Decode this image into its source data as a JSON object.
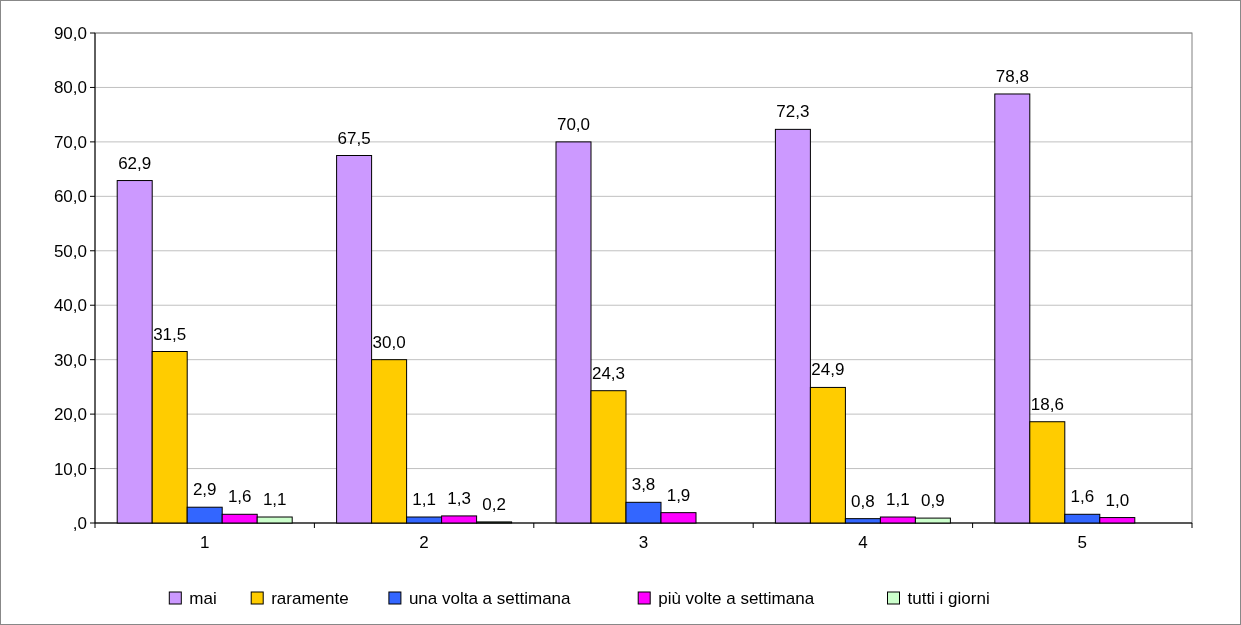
{
  "chart_data": {
    "type": "bar",
    "categories": [
      "1",
      "2",
      "3",
      "4",
      "5"
    ],
    "series": [
      {
        "name": "mai",
        "color": "#cc99ff",
        "values": [
          62.9,
          67.5,
          70.0,
          72.3,
          78.8
        ],
        "value_labels": [
          "62,9",
          "67,5",
          "70,0",
          "72,3",
          "78,8"
        ]
      },
      {
        "name": "raramente",
        "color": "#ffcc00",
        "values": [
          31.5,
          30.0,
          24.3,
          24.9,
          18.6
        ],
        "value_labels": [
          "31,5",
          "30,0",
          "24,3",
          "24,9",
          "18,6"
        ]
      },
      {
        "name": "una volta a settimana",
        "color": "#3366ff",
        "values": [
          2.9,
          1.1,
          3.8,
          0.8,
          1.6
        ],
        "value_labels": [
          "2,9",
          "1,1",
          "3,8",
          "0,8",
          "1,6"
        ]
      },
      {
        "name": "più volte a settimana",
        "color": "#ff00ff",
        "values": [
          1.6,
          1.3,
          1.9,
          1.1,
          1.0
        ],
        "value_labels": [
          "1,6",
          "1,3",
          "1,9",
          "1,1",
          "1,0"
        ]
      },
      {
        "name": "tutti i giorni",
        "color": "#ccffcc",
        "values": [
          1.1,
          0.2,
          null,
          0.9,
          null
        ],
        "value_labels": [
          "1,1",
          "0,2",
          null,
          "0,9",
          null
        ]
      }
    ],
    "ylim": [
      0,
      90
    ],
    "yticks": [
      {
        "value": 0,
        "label": ",0"
      },
      {
        "value": 10,
        "label": "10,0"
      },
      {
        "value": 20,
        "label": "20,0"
      },
      {
        "value": 30,
        "label": "30,0"
      },
      {
        "value": 40,
        "label": "40,0"
      },
      {
        "value": 50,
        "label": "50,0"
      },
      {
        "value": 60,
        "label": "60,0"
      },
      {
        "value": 70,
        "label": "70,0"
      },
      {
        "value": 80,
        "label": "80,0"
      },
      {
        "value": 90,
        "label": "90,0"
      }
    ],
    "grid": "y",
    "legend": "bottom"
  }
}
